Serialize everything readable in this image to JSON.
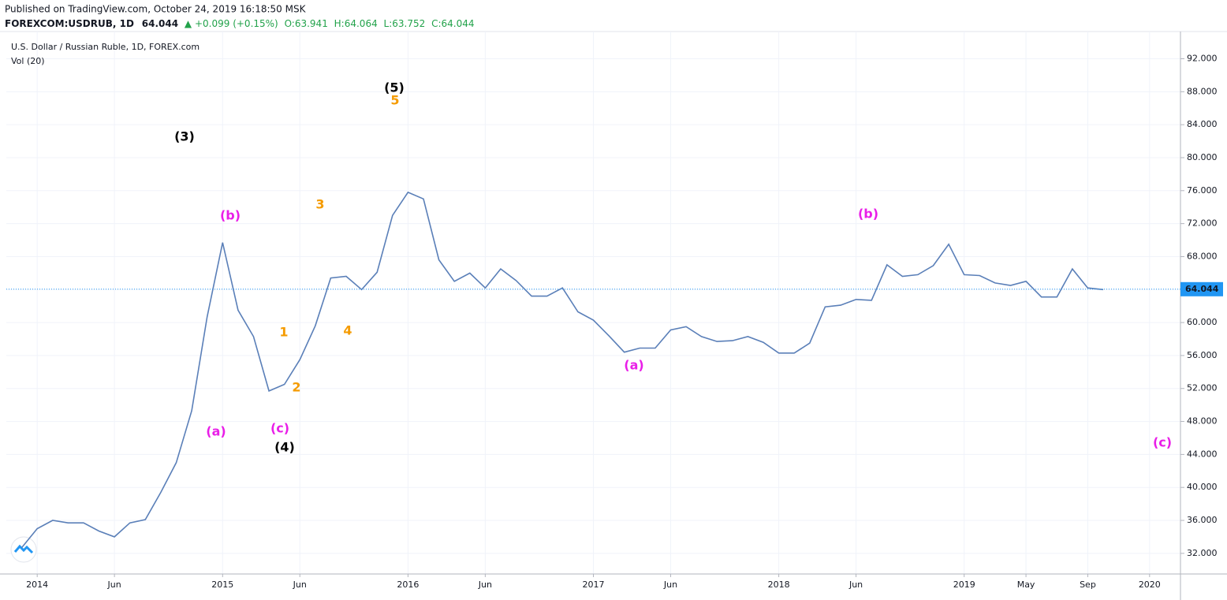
{
  "header": {
    "published": "Published on TradingView.com, October 24, 2019 16:18:50 MSK",
    "symbol": "FOREXCOM:USDRUB, 1D",
    "price": "64.044",
    "arrow": "▲",
    "change": "+0.099 (+0.15%)",
    "open": "O:63.941",
    "high": "H:64.064",
    "low": "L:63.752",
    "close": "C:64.044"
  },
  "chart_data": {
    "type": "line",
    "title": "U.S. Dollar / Russian Ruble, 1D, FOREX.com",
    "subtitle": "Vol (20)",
    "x": [
      "2013-12",
      "2014-01",
      "2014-02",
      "2014-03",
      "2014-04",
      "2014-05",
      "2014-06",
      "2014-07",
      "2014-08",
      "2014-09",
      "2014-10",
      "2014-11",
      "2014-12",
      "2015-01",
      "2015-02",
      "2015-03",
      "2015-04",
      "2015-05",
      "2015-06",
      "2015-07",
      "2015-08",
      "2015-09",
      "2015-10",
      "2015-11",
      "2015-12",
      "2016-01",
      "2016-02",
      "2016-03",
      "2016-04",
      "2016-05",
      "2016-06",
      "2016-07",
      "2016-08",
      "2016-09",
      "2016-10",
      "2016-11",
      "2016-12",
      "2017-01",
      "2017-02",
      "2017-03",
      "2017-04",
      "2017-05",
      "2017-06",
      "2017-07",
      "2017-08",
      "2017-09",
      "2017-10",
      "2017-11",
      "2017-12",
      "2018-01",
      "2018-02",
      "2018-03",
      "2018-04",
      "2018-05",
      "2018-06",
      "2018-07",
      "2018-08",
      "2018-09",
      "2018-10",
      "2018-11",
      "2018-12",
      "2019-01",
      "2019-02",
      "2019-03",
      "2019-04",
      "2019-05",
      "2019-06",
      "2019-07",
      "2019-08",
      "2019-09",
      "2019-10"
    ],
    "series": [
      {
        "name": "USDRUB",
        "color": "#5a7fb8",
        "values": [
          32.7,
          35.0,
          36.0,
          35.7,
          35.7,
          34.7,
          34.0,
          35.7,
          36.1,
          39.4,
          43.0,
          49.3,
          60.7,
          69.7,
          61.5,
          58.3,
          51.7,
          52.5,
          55.5,
          59.6,
          65.4,
          65.6,
          64.0,
          66.1,
          73.0,
          75.8,
          75.0,
          67.6,
          65.0,
          66.0,
          64.2,
          66.5,
          65.1,
          63.2,
          63.2,
          64.2,
          61.3,
          60.3,
          58.4,
          56.4,
          56.9,
          56.9,
          59.1,
          59.5,
          58.3,
          57.7,
          57.8,
          58.3,
          57.6,
          56.3,
          56.3,
          57.5,
          61.9,
          62.1,
          62.8,
          62.7,
          67.0,
          65.6,
          65.8,
          66.9,
          69.5,
          65.8,
          65.7,
          64.8,
          64.5,
          65.0,
          63.1,
          63.1,
          66.5,
          64.2,
          64.0
        ]
      }
    ],
    "last_price": 64.044,
    "last_price_label": "64.044",
    "xlim": [
      "2013-11",
      "2020-03"
    ],
    "xticks": [
      {
        "value": "2014-01",
        "label": "2014"
      },
      {
        "value": "2014-06",
        "label": "Jun"
      },
      {
        "value": "2015-01",
        "label": "2015"
      },
      {
        "value": "2015-06",
        "label": "Jun"
      },
      {
        "value": "2016-01",
        "label": "2016"
      },
      {
        "value": "2016-06",
        "label": "Jun"
      },
      {
        "value": "2017-01",
        "label": "2017"
      },
      {
        "value": "2017-06",
        "label": "Jun"
      },
      {
        "value": "2018-01",
        "label": "2018"
      },
      {
        "value": "2018-06",
        "label": "Jun"
      },
      {
        "value": "2019-01",
        "label": "2019"
      },
      {
        "value": "2019-05",
        "label": "May"
      },
      {
        "value": "2019-09",
        "label": "Sep"
      },
      {
        "value": "2020-01",
        "label": "2020"
      }
    ],
    "ylim": [
      29.5,
      95.3
    ],
    "yticks": [
      {
        "value": 32,
        "label": "32.000"
      },
      {
        "value": 36,
        "label": "36.000"
      },
      {
        "value": 40,
        "label": "40.000"
      },
      {
        "value": 44,
        "label": "44.000"
      },
      {
        "value": 48,
        "label": "48.000"
      },
      {
        "value": 52,
        "label": "52.000"
      },
      {
        "value": 56,
        "label": "56.000"
      },
      {
        "value": 60,
        "label": "60.000"
      },
      {
        "value": 64,
        "label": "64.000"
      },
      {
        "value": 68,
        "label": "68.000"
      },
      {
        "value": 72,
        "label": "72.000"
      },
      {
        "value": 76,
        "label": "76.000"
      },
      {
        "value": 80,
        "label": "80.000"
      },
      {
        "value": 84,
        "label": "84.000"
      },
      {
        "value": 88,
        "label": "88.000"
      },
      {
        "value": 92,
        "label": "92.000"
      }
    ],
    "grid": true,
    "annotations": [
      {
        "text": "(3)",
        "color": "#000000"
      },
      {
        "text": "(5)",
        "color": "#000000"
      },
      {
        "text": "5",
        "color": "#f59b00"
      },
      {
        "text": "(b)",
        "color": "#e91ee8"
      },
      {
        "text": "3",
        "color": "#f59b00"
      },
      {
        "text": "1",
        "color": "#f59b00"
      },
      {
        "text": "2",
        "color": "#f59b00"
      },
      {
        "text": "4",
        "color": "#f59b00"
      },
      {
        "text": "(a)",
        "color": "#e91ee8"
      },
      {
        "text": "(c)",
        "color": "#e91ee8"
      },
      {
        "text": "(4)",
        "color": "#000000"
      },
      {
        "text": "(a)",
        "color": "#e91ee8"
      },
      {
        "text": "(b)",
        "color": "#e91ee8"
      },
      {
        "text": "(c)",
        "color": "#e91ee8"
      }
    ]
  }
}
